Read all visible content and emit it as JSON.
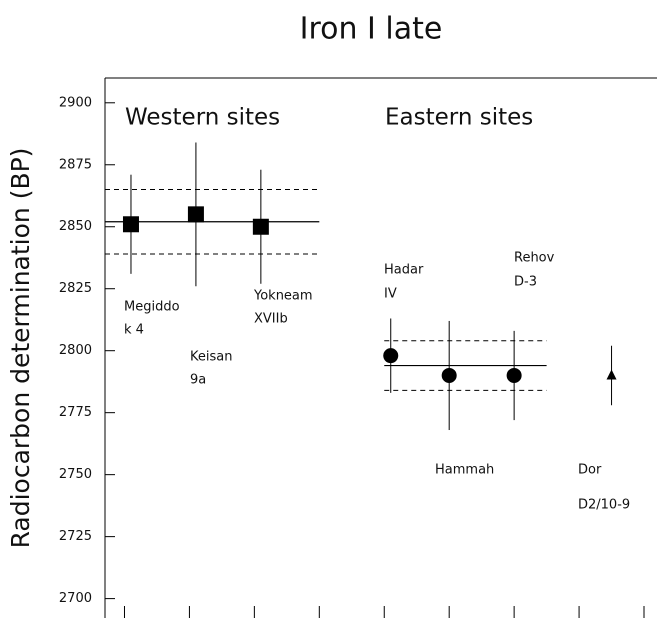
{
  "chart_data": {
    "type": "scatter",
    "title": "Iron I late",
    "ylabel": "Radiocarbon determination (BP)",
    "annotations": [
      "Western sites",
      "Eastern sites"
    ],
    "ylim": [
      2695,
      2910
    ],
    "yticks": [
      2700,
      2725,
      2750,
      2775,
      2800,
      2825,
      2850,
      2875,
      2900
    ],
    "xlim": [
      -0.3,
      8.2
    ],
    "xticks": [
      0,
      1,
      2,
      3,
      4,
      5,
      6,
      7,
      8
    ],
    "points": [
      {
        "label": [
          "Megiddo",
          "k 4"
        ],
        "x": 0.1,
        "y": 2851,
        "err": 20,
        "marker": "square"
      },
      {
        "label": [
          "Keisan",
          "9a"
        ],
        "x": 1.1,
        "y": 2855,
        "err": 29,
        "marker": "square"
      },
      {
        "label": [
          "Yokneam",
          "XVIIb"
        ],
        "x": 2.1,
        "y": 2850,
        "err": 23,
        "marker": "square"
      },
      {
        "label": [
          "Hadar",
          "IV"
        ],
        "x": 4.1,
        "y": 2798,
        "err": 15,
        "marker": "circle"
      },
      {
        "label": [
          "Hammah"
        ],
        "x": 5.0,
        "y": 2790,
        "err": 22,
        "marker": "circle"
      },
      {
        "label": [
          "Rehov",
          "D-3"
        ],
        "x": 6.0,
        "y": 2790,
        "err": 18,
        "marker": "circle"
      },
      {
        "label": [
          "Dor",
          "D2/10-9"
        ],
        "x": 7.5,
        "y": 2790,
        "err": 12,
        "marker": "triangle"
      }
    ],
    "group_means": [
      {
        "x": [
          -0.3,
          3.0
        ],
        "mean": 2852,
        "band": [
          2839,
          2865
        ]
      },
      {
        "x": [
          4.0,
          6.5
        ],
        "mean": 2794,
        "band": [
          2784,
          2804
        ]
      }
    ]
  }
}
